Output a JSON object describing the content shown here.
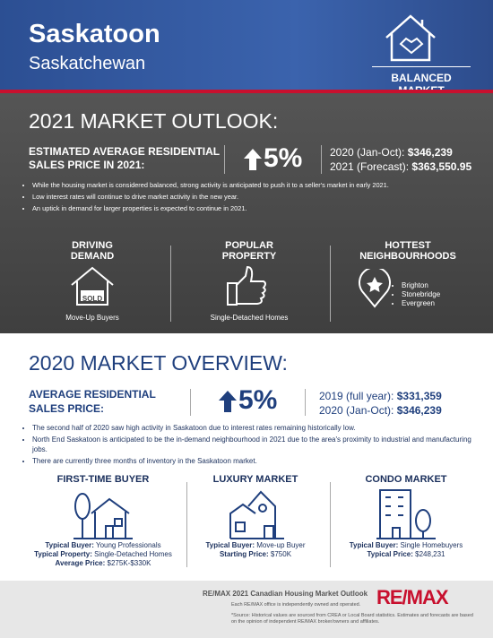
{
  "header": {
    "city": "Saskatoon",
    "province": "Saskatchewan",
    "badge": "BALANCED MARKET"
  },
  "outlook": {
    "title": "2021 MARKET OUTLOOK:",
    "metric_label": "ESTIMATED AVERAGE RESIDENTIAL SALES PRICE IN 2021:",
    "change": "5%",
    "comparisons": [
      {
        "label": "2020 (Jan-Oct):",
        "value": "$346,239"
      },
      {
        "label": "2021 (Forecast):",
        "value": "$363,550.95"
      }
    ],
    "bullets": [
      "While the housing market is considered balanced, strong activity is anticipated to push it to a seller's market in early 2021.",
      "Low interest rates will continue to drive market activity in the new year.",
      "An uptick in demand for larger properties is expected to continue in 2021."
    ],
    "driving_demand": {
      "title": "DRIVING DEMAND",
      "icon_text": "SOLD",
      "caption": "Move-Up Buyers"
    },
    "popular_property": {
      "title": "POPULAR PROPERTY",
      "caption": "Single-Detached Homes"
    },
    "hottest_neighbourhoods": {
      "title": "HOTTEST NEIGHBOURHOODS",
      "items": [
        "Brighton",
        "Stonebridge",
        "Evergreen"
      ]
    }
  },
  "overview": {
    "title": "2020 MARKET OVERVIEW:",
    "metric_label": "AVERAGE RESIDENTIAL SALES PRICE:",
    "change": "5%",
    "comparisons": [
      {
        "label": "2019 (full year):",
        "value": "$331,359"
      },
      {
        "label": "2020 (Jan-Oct):",
        "value": "$346,239"
      }
    ],
    "bullets": [
      "The second half of 2020 saw high activity in Saskatoon due to interest rates remaining historically low.",
      "North End Saskatoon is anticipated to be the in-demand neighbourhood in 2021 due to the area's proximity to industrial and manufacturing jobs.",
      "There are currently three months of inventory in the Saskatoon market."
    ],
    "segments": [
      {
        "title": "FIRST-TIME BUYER",
        "rows": [
          {
            "label": "Typical Buyer:",
            "value": "Young Professionals"
          },
          {
            "label": "Typical Property:",
            "value": "Single-Detached Homes"
          },
          {
            "label": "Average Price:",
            "value": "$275K-$330K"
          }
        ]
      },
      {
        "title": "LUXURY MARKET",
        "rows": [
          {
            "label": "Typical Buyer:",
            "value": "Move-up Buyer"
          },
          {
            "label": "Starting Price:",
            "value": "$750K"
          }
        ]
      },
      {
        "title": "CONDO MARKET",
        "rows": [
          {
            "label": "Typical Buyer:",
            "value": "Single Homebuyers"
          },
          {
            "label": "Typical Price:",
            "value": "$248,231"
          }
        ]
      }
    ]
  },
  "footer": {
    "title": "RE/MAX 2021 Canadian Housing Market Outlook",
    "note": "Each RE/MAX office is independently owned and operated.",
    "source": "*Source: Historical values are sourced from CREA or Local Board statistics. Estimates and forecasts are based on the opinion of independent RE/MAX broker/owners and affiliates.",
    "logo": "RE/MAX"
  }
}
